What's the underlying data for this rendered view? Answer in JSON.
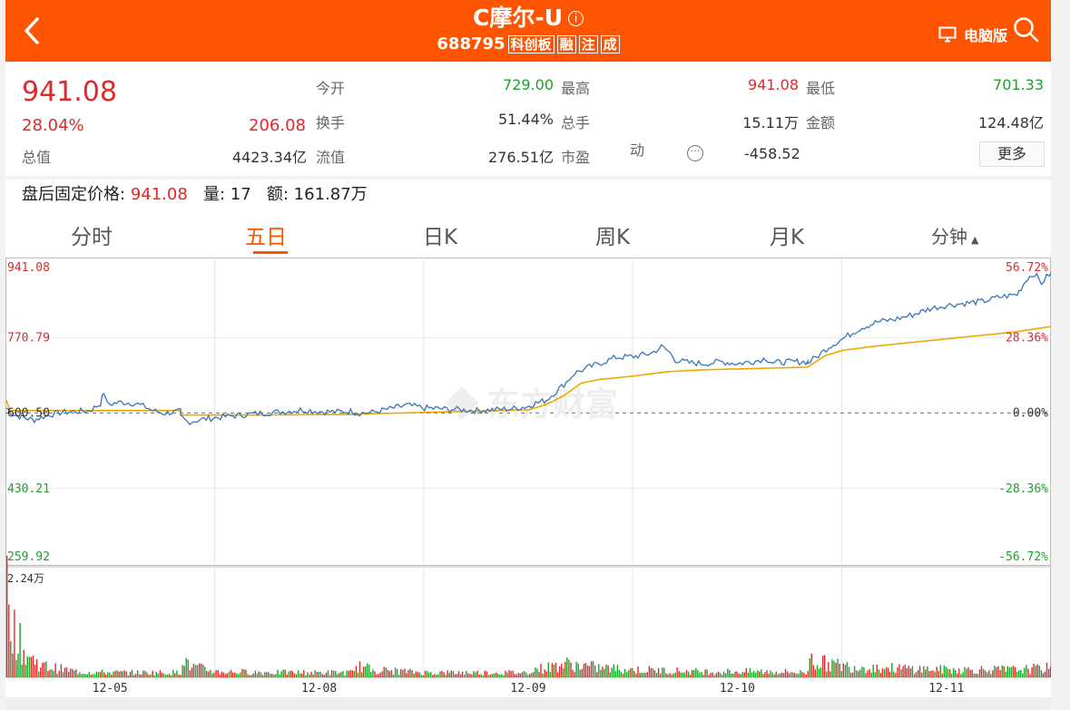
{
  "header": {
    "title": "C摩尔-U",
    "code": "688795",
    "tags": [
      "科创板",
      "融",
      "注",
      "成"
    ],
    "desktop_label": "电脑版",
    "bg_color": "#ff5500"
  },
  "quote": {
    "price": "941.08",
    "change_pct": "28.04%",
    "change": "206.08",
    "rows": [
      {
        "l1": "今开",
        "v1": "729.00",
        "l2": "最高",
        "v2": "941.08",
        "l3": "最低",
        "v3": "701.33"
      },
      {
        "l1": "换手",
        "v1": "51.44%",
        "l2": "总手",
        "v2": "15.11万",
        "l3": "金额",
        "v3": "124.48亿"
      },
      {
        "l1": "流值",
        "v1": "276.51亿",
        "l2": "市盈",
        "l2b": "动",
        "v2": "-458.52"
      }
    ],
    "total_value_label": "总值",
    "total_value": "4423.34亿",
    "more_label": "更多"
  },
  "afterhours": {
    "label": "盘后固定价格:",
    "price": "941.08",
    "vol_label": "量:",
    "vol": "17",
    "amt_label": "额:",
    "amt": "161.87万"
  },
  "tabs": [
    "分时",
    "五日",
    "日K",
    "周K",
    "月K",
    "分钟"
  ],
  "active_tab": 1,
  "chart_data": {
    "type": "line",
    "series": [
      {
        "name": "price",
        "color": "#3a76b8"
      },
      {
        "name": "avg",
        "color": "#f0a800"
      }
    ],
    "days": [
      "12-05",
      "12-08",
      "12-09",
      "12-10",
      "12-11"
    ],
    "y_left_labels": [
      "941.08",
      "770.79",
      "600.50",
      "430.21",
      "259.92"
    ],
    "y_right_labels": [
      "56.72%",
      "28.36%",
      "0.00%",
      "-28.36%",
      "-56.72%"
    ],
    "ylim": [
      259.92,
      941.08
    ],
    "prev_close": 600.5,
    "volume_max_label": "2.24万",
    "price_points": [
      [
        0,
        612
      ],
      [
        0.02,
        598
      ],
      [
        0.05,
        590
      ],
      [
        0.08,
        585
      ],
      [
        0.12,
        596
      ],
      [
        0.16,
        602
      ],
      [
        0.2,
        604
      ],
      [
        0.24,
        606
      ],
      [
        0.27,
        622
      ],
      [
        0.28,
        648
      ],
      [
        0.29,
        620
      ],
      [
        0.33,
        625
      ],
      [
        0.37,
        622
      ],
      [
        0.4,
        614
      ],
      [
        0.42,
        606
      ],
      [
        0.45,
        600
      ],
      [
        0.5,
        604
      ],
      [
        0.5,
        592
      ],
      [
        0.52,
        580
      ],
      [
        0.56,
        586
      ],
      [
        0.6,
        590
      ],
      [
        0.65,
        594
      ],
      [
        0.7,
        598
      ],
      [
        0.75,
        601
      ],
      [
        0.8,
        604
      ],
      [
        0.85,
        608
      ],
      [
        0.9,
        604
      ],
      [
        0.95,
        603
      ],
      [
        1.0,
        605
      ],
      [
        1.0,
        600
      ],
      [
        1.05,
        602
      ],
      [
        1.1,
        610
      ],
      [
        1.15,
        618
      ],
      [
        1.2,
        612
      ],
      [
        1.25,
        610
      ],
      [
        1.3,
        608
      ],
      [
        1.35,
        606
      ],
      [
        1.4,
        608
      ],
      [
        1.45,
        610
      ],
      [
        1.5,
        616
      ],
      [
        1.5,
        618
      ],
      [
        1.55,
        630
      ],
      [
        1.6,
        665
      ],
      [
        1.63,
        690
      ],
      [
        1.66,
        700
      ],
      [
        1.7,
        712
      ],
      [
        1.75,
        726
      ],
      [
        1.8,
        728
      ],
      [
        1.85,
        735
      ],
      [
        1.88,
        750
      ],
      [
        1.9,
        740
      ],
      [
        1.92,
        720
      ],
      [
        1.96,
        714
      ],
      [
        2.0,
        712
      ],
      [
        2.05,
        716
      ],
      [
        2.1,
        712
      ],
      [
        2.15,
        718
      ],
      [
        2.18,
        724
      ],
      [
        2.2,
        714
      ],
      [
        2.25,
        716
      ],
      [
        2.3,
        716
      ],
      [
        2.3,
        714
      ],
      [
        2.33,
        730
      ],
      [
        2.36,
        750
      ],
      [
        2.4,
        768
      ],
      [
        2.45,
        792
      ],
      [
        2.5,
        806
      ],
      [
        2.55,
        812
      ],
      [
        2.6,
        822
      ],
      [
        2.65,
        836
      ],
      [
        2.7,
        844
      ],
      [
        2.75,
        848
      ],
      [
        2.8,
        852
      ],
      [
        2.85,
        862
      ],
      [
        2.9,
        868
      ],
      [
        2.93,
        905
      ],
      [
        2.95,
        915
      ],
      [
        2.97,
        894
      ],
      [
        3.0,
        920
      ]
    ],
    "avg_points": [
      [
        0,
        630
      ],
      [
        0.01,
        606
      ],
      [
        0.04,
        606
      ],
      [
        0.08,
        606
      ],
      [
        0.12,
        606
      ],
      [
        0.2,
        606
      ],
      [
        0.3,
        606
      ],
      [
        0.4,
        606
      ],
      [
        0.5,
        606
      ],
      [
        0.5,
        596
      ],
      [
        0.7,
        596
      ],
      [
        0.9,
        597
      ],
      [
        1.0,
        597
      ],
      [
        1.0,
        598
      ],
      [
        1.1,
        600
      ],
      [
        1.2,
        602
      ],
      [
        1.3,
        604
      ],
      [
        1.4,
        606
      ],
      [
        1.5,
        608
      ],
      [
        1.5,
        608
      ],
      [
        1.55,
        620
      ],
      [
        1.6,
        640
      ],
      [
        1.65,
        668
      ],
      [
        1.7,
        676
      ],
      [
        1.8,
        684
      ],
      [
        1.9,
        694
      ],
      [
        2.0,
        698
      ],
      [
        2.1,
        700
      ],
      [
        2.2,
        702
      ],
      [
        2.3,
        704
      ],
      [
        2.3,
        705
      ],
      [
        2.35,
        730
      ],
      [
        2.4,
        742
      ],
      [
        2.5,
        752
      ],
      [
        2.6,
        760
      ],
      [
        2.7,
        768
      ],
      [
        2.8,
        776
      ],
      [
        2.9,
        784
      ],
      [
        3.0,
        796
      ]
    ],
    "volume_profile": [
      [
        0.0,
        1.0
      ],
      [
        0.02,
        0.5
      ],
      [
        0.05,
        0.25
      ],
      [
        0.1,
        0.12
      ],
      [
        0.2,
        0.06
      ],
      [
        0.3,
        0.05
      ],
      [
        0.5,
        0.05
      ],
      [
        0.5,
        0.3
      ],
      [
        0.52,
        0.12
      ],
      [
        0.6,
        0.06
      ],
      [
        0.8,
        0.05
      ],
      [
        1.0,
        0.05
      ],
      [
        1.0,
        0.12
      ],
      [
        1.05,
        0.08
      ],
      [
        1.2,
        0.05
      ],
      [
        1.4,
        0.05
      ],
      [
        1.5,
        0.05
      ],
      [
        1.5,
        0.08
      ],
      [
        1.55,
        0.1
      ],
      [
        1.6,
        0.14
      ],
      [
        1.7,
        0.1
      ],
      [
        1.8,
        0.08
      ],
      [
        2.0,
        0.06
      ],
      [
        2.2,
        0.06
      ],
      [
        2.3,
        0.05
      ],
      [
        2.3,
        0.3
      ],
      [
        2.32,
        0.16
      ],
      [
        2.4,
        0.12
      ],
      [
        2.5,
        0.1
      ],
      [
        2.7,
        0.08
      ],
      [
        2.9,
        0.08
      ],
      [
        3.0,
        0.1
      ]
    ]
  }
}
